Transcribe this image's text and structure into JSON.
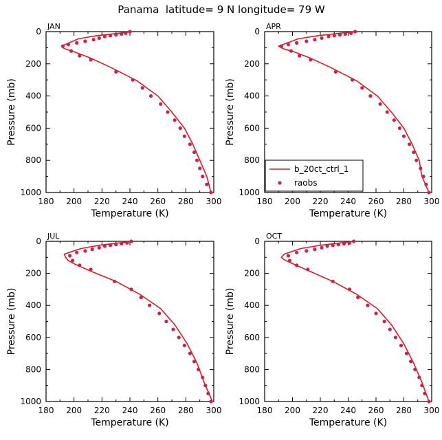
{
  "page": {
    "title": "Panama  latitude= 9 N longitude= 79 W"
  },
  "axes": {
    "xlabel": "Temperature (K)",
    "ylabel": "Pressure (mb)",
    "xlim": [
      180,
      300
    ],
    "ylim": [
      1000,
      0
    ],
    "xticks": [
      "180",
      "200",
      "220",
      "240",
      "260",
      "280",
      "300"
    ],
    "yticks": [
      "0",
      "200",
      "400",
      "600",
      "800",
      "1000"
    ]
  },
  "legend": {
    "model_label": "b_20ct_ctrl_1",
    "obs_label": "raobs"
  },
  "colors": {
    "model": "#e8161c",
    "obs": "#c8234a"
  },
  "chart_data": [
    {
      "type": "line",
      "panel": "JAN",
      "xlabel": "Temperature (K)",
      "ylabel": "Pressure (mb)",
      "series": [
        {
          "name": "b_20ct_ctrl_1",
          "kind": "line",
          "x": [
            242,
            232,
            216,
            203,
            191,
            193,
            200,
            212,
            227,
            245,
            260,
            270,
            279,
            285,
            290,
            295,
            298
          ],
          "y": [
            0,
            10,
            25,
            45,
            90,
            105,
            125,
            165,
            225,
            305,
            400,
            500,
            600,
            700,
            800,
            900,
            1000
          ]
        },
        {
          "name": "raobs",
          "kind": "points",
          "x": [
            240,
            237,
            234,
            230,
            226,
            222,
            218,
            214,
            208,
            202,
            196,
            192,
            198,
            204,
            212,
            230,
            242,
            249,
            255,
            262,
            267,
            272,
            276,
            279,
            283,
            286,
            288,
            290,
            292,
            295,
            298
          ],
          "y": [
            0,
            10,
            15,
            20,
            25,
            30,
            40,
            50,
            60,
            70,
            80,
            90,
            120,
            150,
            175,
            250,
            300,
            350,
            400,
            450,
            500,
            550,
            600,
            650,
            700,
            750,
            800,
            850,
            900,
            950,
            1000
          ]
        }
      ]
    },
    {
      "type": "line",
      "panel": "APR",
      "xlabel": "Temperature (K)",
      "ylabel": "Pressure (mb)",
      "series": [
        {
          "name": "b_20ct_ctrl_1",
          "kind": "line",
          "x": [
            246,
            234,
            218,
            204,
            190,
            193,
            201,
            213,
            228,
            246,
            261,
            271,
            280,
            286,
            291,
            293,
            298
          ],
          "y": [
            0,
            10,
            25,
            45,
            90,
            105,
            125,
            165,
            225,
            305,
            400,
            500,
            600,
            700,
            800,
            900,
            1000
          ]
        },
        {
          "name": "raobs",
          "kind": "points",
          "x": [
            245,
            242,
            238,
            234,
            230,
            226,
            221,
            216,
            210,
            203,
            197,
            192,
            199,
            205,
            213,
            231,
            243,
            250,
            256,
            263,
            268,
            273,
            277,
            280,
            284,
            287,
            289,
            292,
            294,
            296,
            298
          ],
          "y": [
            0,
            10,
            15,
            20,
            25,
            30,
            40,
            50,
            60,
            70,
            80,
            90,
            120,
            150,
            175,
            250,
            300,
            350,
            400,
            450,
            500,
            550,
            600,
            650,
            700,
            750,
            800,
            850,
            900,
            950,
            1000
          ]
        }
      ]
    },
    {
      "type": "line",
      "panel": "JUL",
      "xlabel": "Temperature (K)",
      "ylabel": "Pressure (mb)",
      "series": [
        {
          "name": "b_20ct_ctrl_1",
          "kind": "line",
          "x": [
            243,
            232,
            218,
            205,
            193,
            194,
            196,
            200,
            213,
            230,
            247,
            262,
            272,
            281,
            288,
            293,
            299
          ],
          "y": [
            0,
            10,
            25,
            45,
            80,
            100,
            120,
            140,
            190,
            250,
            330,
            420,
            520,
            640,
            760,
            880,
            1000
          ]
        },
        {
          "name": "raobs",
          "kind": "points",
          "x": [
            241,
            238,
            234,
            230,
            226,
            222,
            218,
            213,
            208,
            202,
            197,
            199,
            204,
            212,
            229,
            241,
            248,
            254,
            261,
            266,
            271,
            275,
            279,
            283,
            286,
            289,
            292,
            294,
            296,
            298
          ],
          "y": [
            0,
            10,
            15,
            20,
            25,
            30,
            40,
            50,
            60,
            70,
            90,
            120,
            150,
            175,
            250,
            300,
            350,
            400,
            450,
            500,
            550,
            600,
            650,
            700,
            750,
            800,
            850,
            900,
            950,
            1000
          ]
        }
      ]
    },
    {
      "type": "line",
      "panel": "OCT",
      "xlabel": "Temperature (K)",
      "ylabel": "Pressure (mb)",
      "series": [
        {
          "name": "b_20ct_ctrl_1",
          "kind": "line",
          "x": [
            244,
            234,
            220,
            206,
            194,
            192,
            194,
            199,
            212,
            229,
            246,
            261,
            271,
            280,
            287,
            293,
            298
          ],
          "y": [
            0,
            10,
            25,
            45,
            80,
            100,
            115,
            135,
            185,
            250,
            330,
            420,
            520,
            640,
            760,
            880,
            1000
          ]
        },
        {
          "name": "raobs",
          "kind": "points",
          "x": [
            244,
            241,
            237,
            233,
            229,
            225,
            221,
            216,
            210,
            203,
            197,
            198,
            203,
            211,
            229,
            241,
            247,
            254,
            260,
            266,
            270,
            274,
            278,
            282,
            285,
            288,
            291,
            293,
            295,
            298
          ],
          "y": [
            0,
            10,
            15,
            20,
            25,
            30,
            40,
            50,
            60,
            70,
            90,
            120,
            150,
            175,
            250,
            300,
            350,
            400,
            450,
            500,
            550,
            600,
            650,
            700,
            750,
            800,
            850,
            900,
            950,
            1000
          ]
        }
      ]
    }
  ]
}
